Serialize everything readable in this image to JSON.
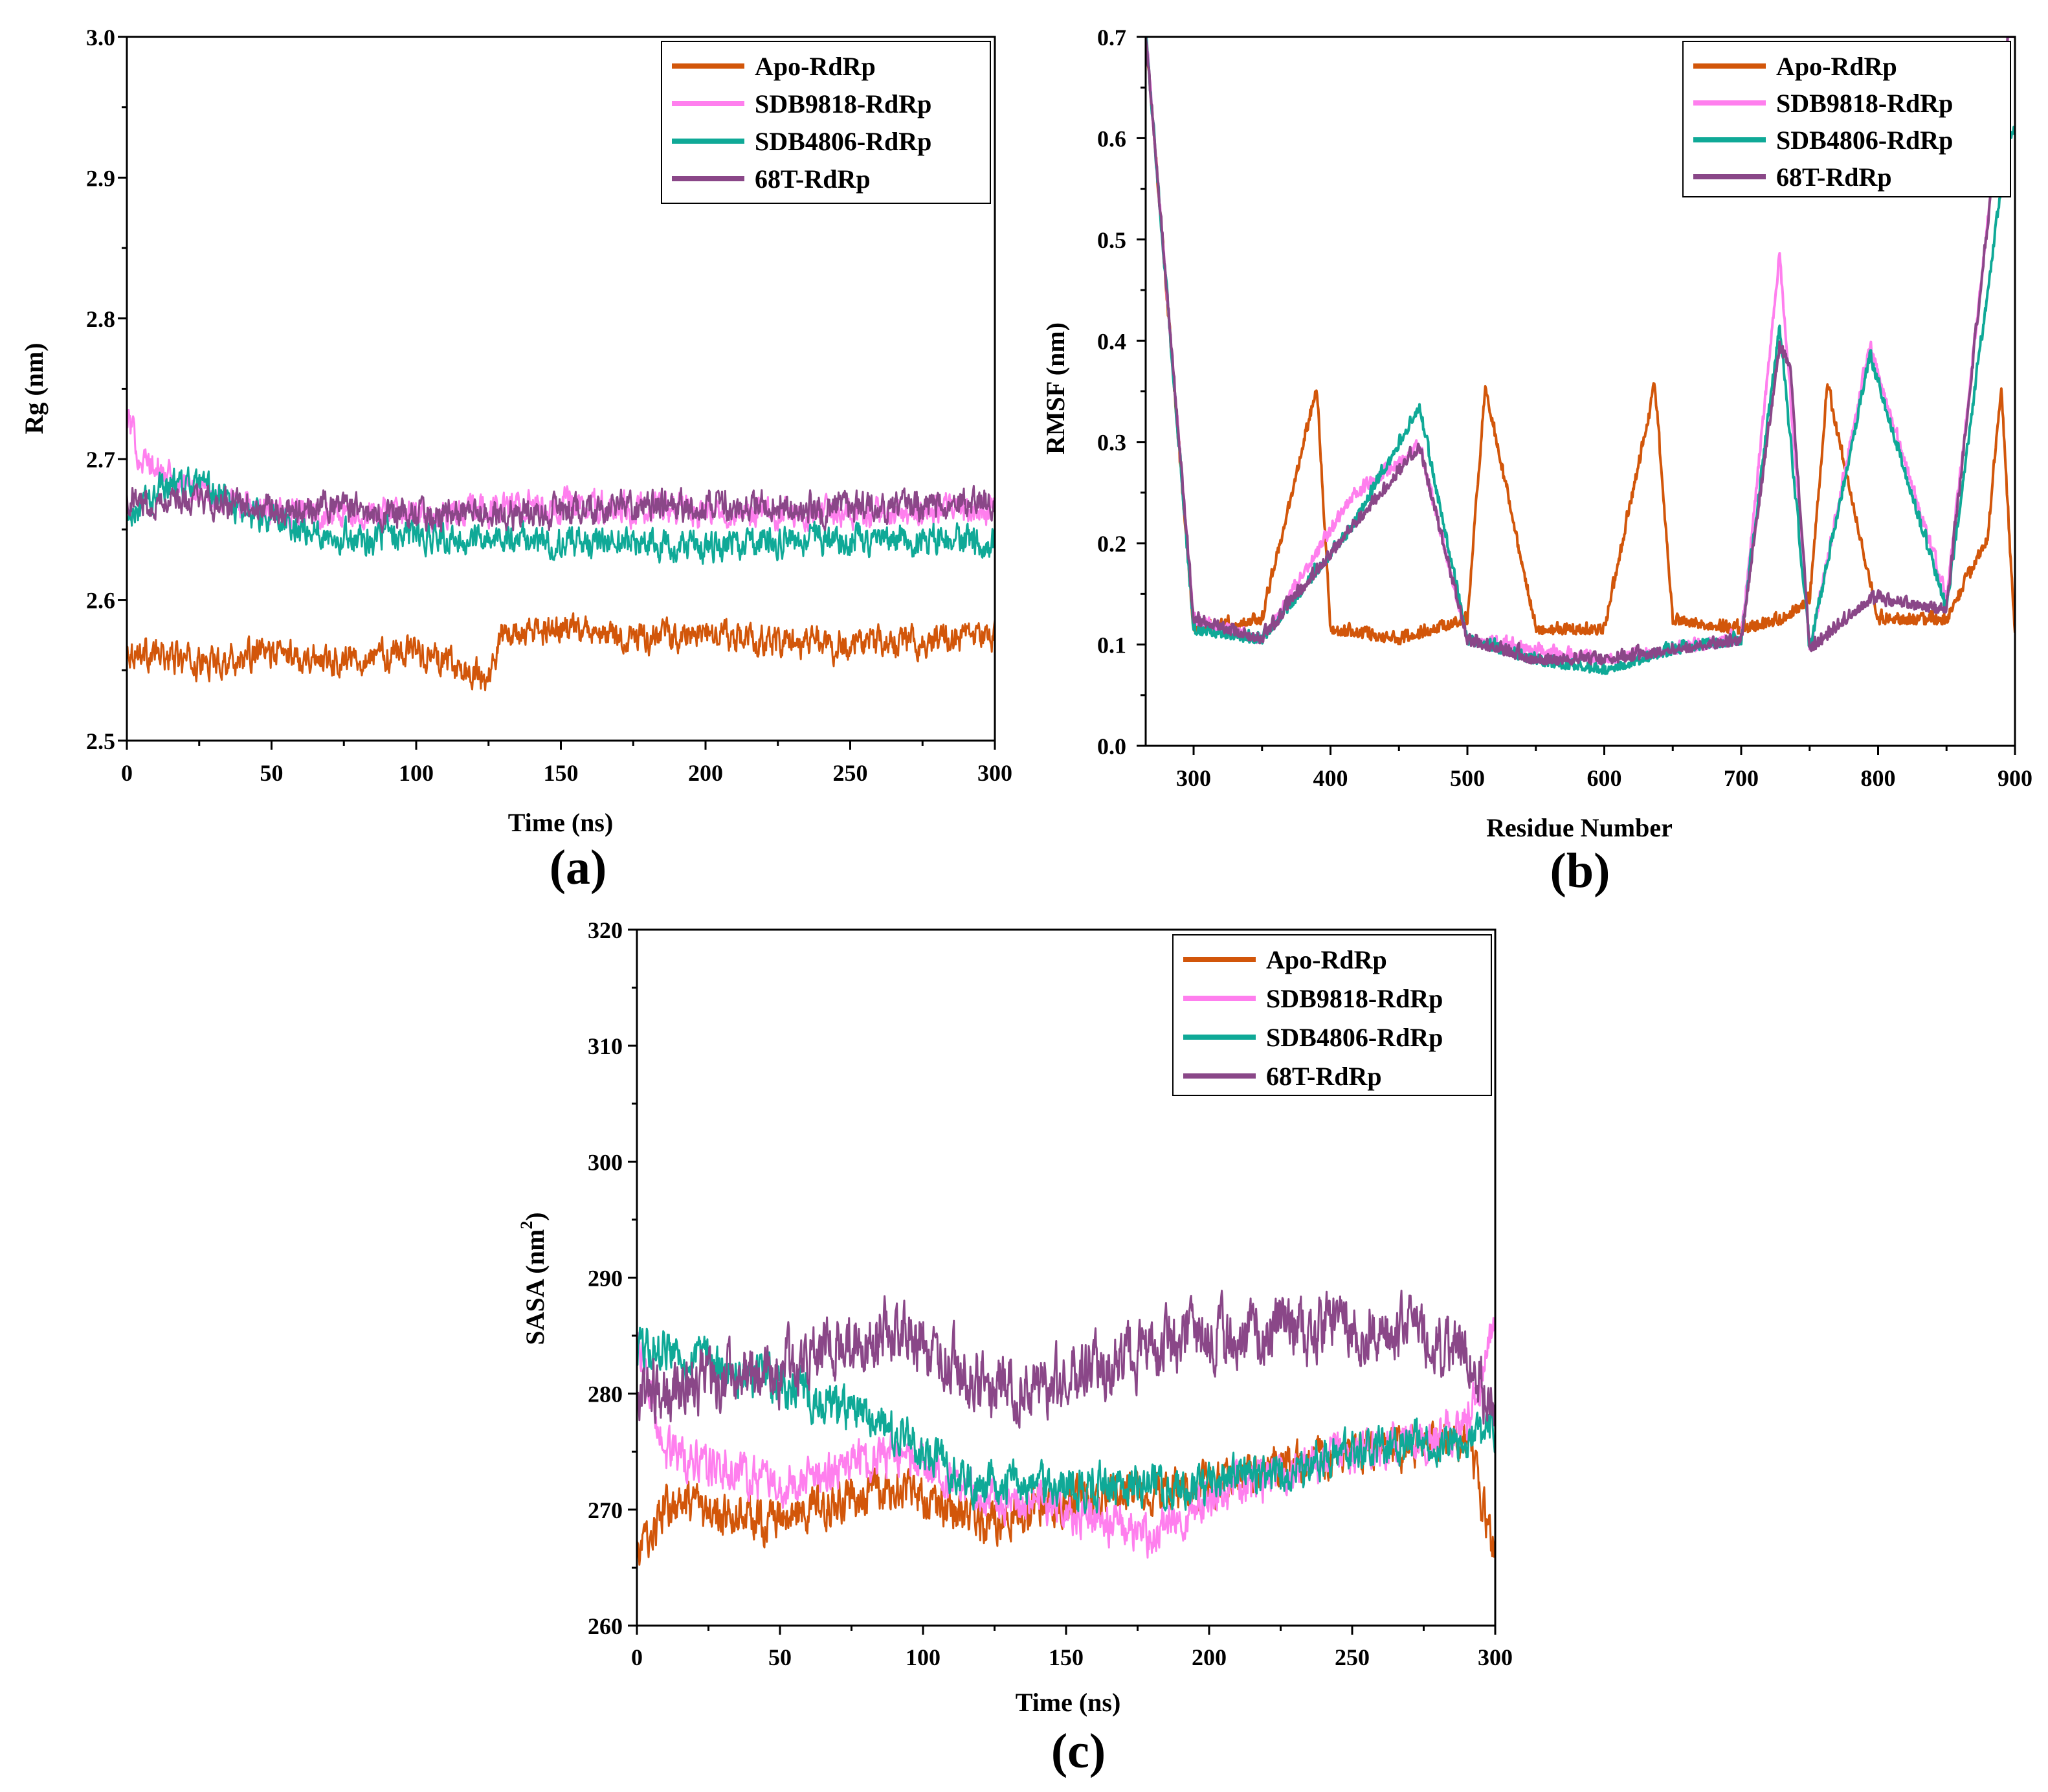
{
  "chart_data": [
    {
      "id": "a",
      "type": "line",
      "panel_label": "(a)",
      "xlabel": "Time (ns)",
      "ylabel": "Rg (nm)",
      "xlim": [
        0,
        300
      ],
      "ylim": [
        2.5,
        3.0
      ],
      "xticks": [
        "0",
        "50",
        "100",
        "150",
        "200",
        "250",
        "300"
      ],
      "yticks": [
        "2.5",
        "2.6",
        "2.7",
        "2.8",
        "2.9",
        "3.0"
      ],
      "legend_position": "top-right",
      "series": [
        {
          "name": "Apo-RdRp",
          "color": "#d2560a",
          "x": [
            0,
            25,
            50,
            75,
            100,
            115,
            125,
            130,
            150,
            175,
            200,
            225,
            250,
            275,
            300
          ],
          "y": [
            2.565,
            2.555,
            2.562,
            2.558,
            2.565,
            2.55,
            2.545,
            2.575,
            2.578,
            2.572,
            2.575,
            2.57,
            2.568,
            2.572,
            2.575
          ],
          "noise": 0.012
        },
        {
          "name": "SDB9818-RdRp",
          "color": "#ff7fee",
          "x": [
            0,
            5,
            15,
            30,
            50,
            100,
            150,
            200,
            250,
            300
          ],
          "y": [
            2.73,
            2.7,
            2.685,
            2.675,
            2.662,
            2.66,
            2.668,
            2.662,
            2.662,
            2.665
          ],
          "noise": 0.012
        },
        {
          "name": "SDB4806-RdRp",
          "color": "#0fa997",
          "x": [
            0,
            15,
            30,
            50,
            75,
            100,
            150,
            200,
            250,
            300
          ],
          "y": [
            2.655,
            2.685,
            2.675,
            2.655,
            2.645,
            2.645,
            2.642,
            2.638,
            2.645,
            2.64
          ],
          "noise": 0.012
        },
        {
          "name": "68T-RdRp",
          "color": "#8a4788",
          "x": [
            0,
            50,
            100,
            150,
            200,
            250,
            300
          ],
          "y": [
            2.672,
            2.665,
            2.662,
            2.662,
            2.668,
            2.665,
            2.668
          ],
          "noise": 0.012
        }
      ]
    },
    {
      "id": "b",
      "type": "line",
      "panel_label": "(b)",
      "xlabel": "Residue Number",
      "ylabel": "RMSF (nm)",
      "xlim": [
        265,
        900
      ],
      "ylim": [
        0.0,
        0.7
      ],
      "xticks": [
        "300",
        "400",
        "500",
        "600",
        "700",
        "800",
        "900"
      ],
      "yticks": [
        "0.0",
        "0.1",
        "0.2",
        "0.3",
        "0.4",
        "0.5",
        "0.6",
        "0.7"
      ],
      "legend_position": "top-right",
      "series": [
        {
          "name": "Apo-RdRp",
          "color": "#d2560a",
          "x": [
            265,
            300,
            350,
            390,
            400,
            450,
            500,
            513,
            550,
            600,
            637,
            650,
            700,
            730,
            750,
            763,
            800,
            850,
            880,
            890,
            900
          ],
          "y": [
            0.7,
            0.11,
            0.12,
            0.35,
            0.11,
            0.1,
            0.12,
            0.35,
            0.11,
            0.11,
            0.35,
            0.12,
            0.11,
            0.12,
            0.14,
            0.35,
            0.12,
            0.12,
            0.2,
            0.35,
            0.1
          ],
          "noise": 0.02
        },
        {
          "name": "SDB9818-RdRp",
          "color": "#ff7fee",
          "x": [
            265,
            300,
            350,
            415,
            465,
            500,
            550,
            600,
            650,
            700,
            728,
            750,
            794,
            850,
            895,
            900
          ],
          "y": [
            0.7,
            0.12,
            0.1,
            0.24,
            0.29,
            0.1,
            0.09,
            0.08,
            0.09,
            0.1,
            0.48,
            0.09,
            0.39,
            0.14,
            0.7,
            0.7
          ],
          "noise": 0.02
        },
        {
          "name": "SDB4806-RdRp",
          "color": "#0fa997",
          "x": [
            265,
            300,
            350,
            415,
            465,
            500,
            550,
            600,
            650,
            700,
            728,
            750,
            794,
            850,
            895,
            900
          ],
          "y": [
            0.7,
            0.11,
            0.1,
            0.21,
            0.33,
            0.1,
            0.08,
            0.07,
            0.09,
            0.1,
            0.41,
            0.09,
            0.38,
            0.13,
            0.6,
            0.6
          ],
          "noise": 0.02
        },
        {
          "name": "68T-RdRp",
          "color": "#8a4788",
          "x": [
            265,
            300,
            350,
            415,
            465,
            500,
            550,
            600,
            650,
            700,
            728,
            736,
            750,
            794,
            850,
            895,
            900
          ],
          "y": [
            0.7,
            0.12,
            0.1,
            0.21,
            0.29,
            0.1,
            0.08,
            0.08,
            0.09,
            0.1,
            0.39,
            0.37,
            0.09,
            0.14,
            0.13,
            0.7,
            0.7
          ],
          "noise": 0.02
        }
      ]
    },
    {
      "id": "c",
      "type": "line",
      "panel_label": "(c)",
      "xlabel": "Time (ns)",
      "ylabel": "SASA (nm",
      "ylabel_sup": "2",
      "ylabel_end": ")",
      "xlim": [
        0,
        300
      ],
      "ylim": [
        260,
        320
      ],
      "xticks": [
        "0",
        "50",
        "100",
        "150",
        "200",
        "250",
        "300"
      ],
      "yticks": [
        "260",
        "270",
        "280",
        "290",
        "300",
        "310",
        "320"
      ],
      "legend_position": "top-right",
      "series": [
        {
          "name": "Apo-RdRp",
          "color": "#d2560a",
          "x": [
            0,
            10,
            50,
            90,
            120,
            150,
            200,
            250,
            290,
            300
          ],
          "y": [
            266,
            270,
            269,
            272,
            269,
            271,
            272,
            275,
            276,
            266
          ],
          "noise": 2.0
        },
        {
          "name": "SDB9818-RdRp",
          "color": "#ff7fee",
          "x": [
            0,
            10,
            50,
            90,
            120,
            150,
            180,
            200,
            250,
            290,
            300
          ],
          "y": [
            285,
            275,
            272,
            275,
            271,
            270,
            268,
            271,
            275,
            277,
            286
          ],
          "noise": 2.0
        },
        {
          "name": "SDB4806-RdRp",
          "color": "#0fa997",
          "x": [
            0,
            10,
            50,
            90,
            120,
            150,
            200,
            250,
            290,
            300
          ],
          "y": [
            284,
            284,
            281,
            277,
            272,
            272,
            272,
            275,
            276,
            277
          ],
          "noise": 2.0
        },
        {
          "name": "68T-RdRp",
          "color": "#8a4788",
          "x": [
            0,
            20,
            50,
            90,
            120,
            150,
            180,
            210,
            250,
            290,
            300
          ],
          "y": [
            280,
            281,
            282,
            286,
            281,
            281,
            284,
            285,
            286,
            284,
            278
          ],
          "noise": 3.0
        }
      ]
    }
  ]
}
